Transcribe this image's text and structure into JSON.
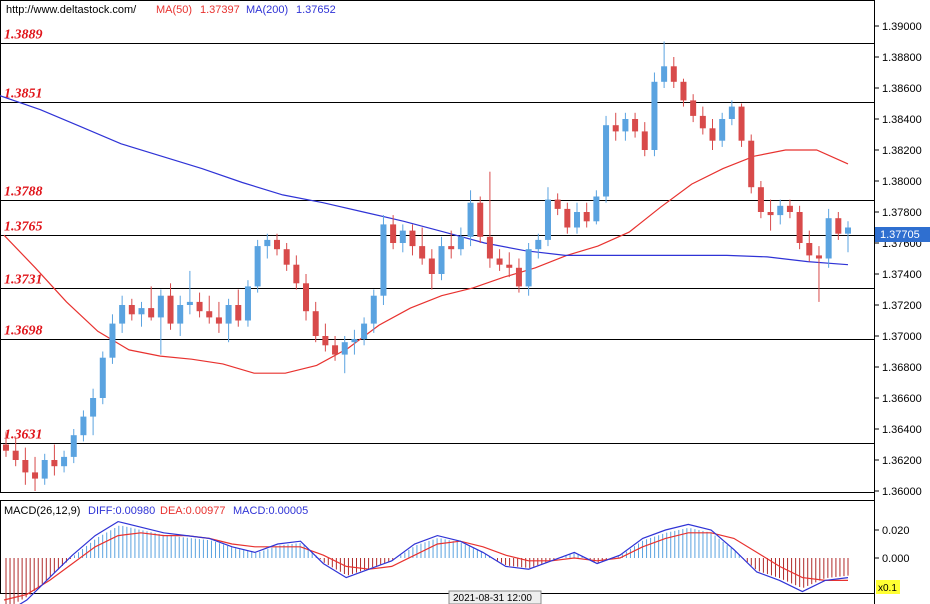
{
  "header": {
    "url": "http://www.deltastock.com/",
    "ma50_label": "MA(50)",
    "ma50_value": "1.37397",
    "ma200_label": "MA(200)",
    "ma200_value": "1.37652"
  },
  "macd_header": {
    "label": "MACD(26,12,9)",
    "diff": "DIFF:0.00980",
    "dea": "DEA:0.00977",
    "macd": "MACD:0.00005"
  },
  "current_price": "1.37705",
  "time_marker": "2021-08-31 12:00",
  "macd_scale_tag": "x0.1",
  "colors": {
    "up_candle": "#5aa3e0",
    "down_candle": "#d84a4a",
    "ma50": "#e8322f",
    "ma200": "#2f33d6",
    "level_label": "#e0141a",
    "macd_hist_pos": "#5aa3e0",
    "macd_hist_neg": "#b02a2a"
  },
  "chart_data": [
    {
      "type": "candlestick",
      "title": "",
      "ylim": [
        1.3596,
        1.3908
      ],
      "y_ticks": [
        "1.39000",
        "1.38800",
        "1.38600",
        "1.38400",
        "1.38200",
        "1.38000",
        "1.37800",
        "1.37600",
        "1.37400",
        "1.37200",
        "1.37000",
        "1.36800",
        "1.36600",
        "1.36400",
        "1.36200",
        "1.36000"
      ],
      "levels": [
        "1.3889",
        "1.3851",
        "1.3788",
        "1.3765",
        "1.3731",
        "1.3698",
        "1.3631"
      ],
      "series": [
        {
          "name": "MA(50)",
          "values": [
            1.3765,
            1.3744,
            1.3722,
            1.3703,
            1.3691,
            1.3687,
            1.3685,
            1.3682,
            1.3676,
            1.3676,
            1.3681,
            1.3692,
            1.3707,
            1.3718,
            1.3726,
            1.3731,
            1.3738,
            1.3744,
            1.3752,
            1.3758,
            1.3767,
            1.3783,
            1.3798,
            1.3808,
            1.3816,
            1.382,
            1.382,
            1.3811
          ]
        },
        {
          "name": "MA(200)",
          "values": [
            1.3855,
            1.3846,
            1.3835,
            1.3824,
            1.3816,
            1.3808,
            1.3799,
            1.3791,
            1.3786,
            1.378,
            1.3774,
            1.3767,
            1.376,
            1.3755,
            1.3752,
            1.3752,
            1.3752,
            1.3752,
            1.3752,
            1.3751,
            1.3748,
            1.3746
          ]
        }
      ],
      "candles_ohlc": [
        [
          1.363,
          1.3638,
          1.3622,
          1.3626
        ],
        [
          1.3626,
          1.3634,
          1.3616,
          1.362
        ],
        [
          1.362,
          1.3628,
          1.3604,
          1.3612
        ],
        [
          1.3612,
          1.3622,
          1.36,
          1.3608
        ],
        [
          1.3608,
          1.3624,
          1.3604,
          1.362
        ],
        [
          1.362,
          1.363,
          1.361,
          1.3616
        ],
        [
          1.3616,
          1.3626,
          1.3612,
          1.3622
        ],
        [
          1.3622,
          1.364,
          1.3618,
          1.3636
        ],
        [
          1.3636,
          1.3652,
          1.3632,
          1.3648
        ],
        [
          1.3648,
          1.3666,
          1.3636,
          1.366
        ],
        [
          1.366,
          1.369,
          1.3656,
          1.3686
        ],
        [
          1.3686,
          1.3714,
          1.3682,
          1.3708
        ],
        [
          1.3708,
          1.3726,
          1.3702,
          1.372
        ],
        [
          1.372,
          1.3724,
          1.371,
          1.3714
        ],
        [
          1.3714,
          1.3722,
          1.3706,
          1.3718
        ],
        [
          1.3718,
          1.3732,
          1.371,
          1.3712
        ],
        [
          1.3712,
          1.373,
          1.3688,
          1.3726
        ],
        [
          1.3726,
          1.3734,
          1.3704,
          1.3708
        ],
        [
          1.3708,
          1.3726,
          1.37,
          1.372
        ],
        [
          1.372,
          1.3742,
          1.3714,
          1.3722
        ],
        [
          1.3722,
          1.3728,
          1.3712,
          1.3716
        ],
        [
          1.3716,
          1.3726,
          1.3708,
          1.3712
        ],
        [
          1.3712,
          1.3722,
          1.3702,
          1.3708
        ],
        [
          1.3708,
          1.3724,
          1.3696,
          1.372
        ],
        [
          1.372,
          1.373,
          1.3706,
          1.371
        ],
        [
          1.371,
          1.3736,
          1.3706,
          1.3732
        ],
        [
          1.3732,
          1.3762,
          1.3728,
          1.3758
        ],
        [
          1.3758,
          1.3766,
          1.375,
          1.3762
        ],
        [
          1.3762,
          1.3766,
          1.3752,
          1.3756
        ],
        [
          1.3756,
          1.376,
          1.3742,
          1.3746
        ],
        [
          1.3746,
          1.3752,
          1.373,
          1.3734
        ],
        [
          1.3734,
          1.374,
          1.371,
          1.3716
        ],
        [
          1.3716,
          1.3722,
          1.3696,
          1.37
        ],
        [
          1.37,
          1.3708,
          1.369,
          1.3694
        ],
        [
          1.3694,
          1.37,
          1.3684,
          1.3688
        ],
        [
          1.3688,
          1.37,
          1.3676,
          1.3696
        ],
        [
          1.3696,
          1.3704,
          1.3688,
          1.3698
        ],
        [
          1.3698,
          1.3712,
          1.3694,
          1.3708
        ],
        [
          1.3708,
          1.373,
          1.3702,
          1.3726
        ],
        [
          1.3726,
          1.3778,
          1.372,
          1.3772
        ],
        [
          1.3772,
          1.3778,
          1.3756,
          1.376
        ],
        [
          1.376,
          1.3772,
          1.3754,
          1.3768
        ],
        [
          1.3768,
          1.3772,
          1.3752,
          1.3758
        ],
        [
          1.3758,
          1.377,
          1.3746,
          1.375
        ],
        [
          1.375,
          1.3756,
          1.373,
          1.374
        ],
        [
          1.374,
          1.3764,
          1.3736,
          1.3758
        ],
        [
          1.3758,
          1.3768,
          1.375,
          1.3756
        ],
        [
          1.3756,
          1.377,
          1.3752,
          1.3764
        ],
        [
          1.3764,
          1.3794,
          1.3758,
          1.3786
        ],
        [
          1.3786,
          1.379,
          1.376,
          1.3764
        ],
        [
          1.3764,
          1.3806,
          1.3744,
          1.375
        ],
        [
          1.375,
          1.3756,
          1.3742,
          1.3746
        ],
        [
          1.3746,
          1.3754,
          1.3738,
          1.3744
        ],
        [
          1.3744,
          1.375,
          1.3728,
          1.3732
        ],
        [
          1.3732,
          1.376,
          1.3726,
          1.3756
        ],
        [
          1.3756,
          1.3766,
          1.375,
          1.3762
        ],
        [
          1.3762,
          1.3796,
          1.3758,
          1.3788
        ],
        [
          1.3788,
          1.3792,
          1.3778,
          1.3782
        ],
        [
          1.3782,
          1.3786,
          1.3766,
          1.377
        ],
        [
          1.377,
          1.3786,
          1.3766,
          1.378
        ],
        [
          1.378,
          1.3786,
          1.377,
          1.3774
        ],
        [
          1.3774,
          1.3794,
          1.3772,
          1.379
        ],
        [
          1.379,
          1.3842,
          1.3786,
          1.3836
        ],
        [
          1.3836,
          1.3844,
          1.3826,
          1.3832
        ],
        [
          1.3832,
          1.3844,
          1.3826,
          1.384
        ],
        [
          1.384,
          1.3844,
          1.3828,
          1.3832
        ],
        [
          1.3832,
          1.3838,
          1.3816,
          1.382
        ],
        [
          1.382,
          1.387,
          1.3816,
          1.3864
        ],
        [
          1.3864,
          1.389,
          1.386,
          1.3874
        ],
        [
          1.3874,
          1.388,
          1.386,
          1.3864
        ],
        [
          1.3864,
          1.3866,
          1.3848,
          1.3852
        ],
        [
          1.3852,
          1.3856,
          1.3838,
          1.3842
        ],
        [
          1.3842,
          1.3848,
          1.383,
          1.3834
        ],
        [
          1.3834,
          1.384,
          1.382,
          1.3826
        ],
        [
          1.3826,
          1.3844,
          1.3822,
          1.384
        ],
        [
          1.384,
          1.3852,
          1.3836,
          1.3848
        ],
        [
          1.3848,
          1.385,
          1.3822,
          1.3826
        ],
        [
          1.3826,
          1.383,
          1.3792,
          1.3796
        ],
        [
          1.3796,
          1.38,
          1.3776,
          1.378
        ],
        [
          1.378,
          1.3788,
          1.3768,
          1.3778
        ],
        [
          1.3778,
          1.3788,
          1.3772,
          1.3784
        ],
        [
          1.3784,
          1.3788,
          1.3776,
          1.378
        ],
        [
          1.378,
          1.3784,
          1.3756,
          1.376
        ],
        [
          1.376,
          1.3768,
          1.3748,
          1.3752
        ],
        [
          1.3752,
          1.3758,
          1.3722,
          1.375
        ],
        [
          1.375,
          1.3782,
          1.3744,
          1.3776
        ],
        [
          1.3776,
          1.378,
          1.3762,
          1.3766
        ],
        [
          1.3766,
          1.3774,
          1.3754,
          1.377
        ]
      ]
    },
    {
      "type": "line",
      "title": "MACD(26,12,9)",
      "y_ticks": [
        "0.020",
        "0.000"
      ],
      "series": [
        {
          "name": "DIFF",
          "values": [
            -0.04,
            -0.03,
            -0.014,
            0.002,
            0.016,
            0.026,
            0.022,
            0.018,
            0.016,
            0.014,
            0.008,
            0.004,
            0.01,
            0.012,
            -0.004,
            -0.014,
            -0.008,
            -0.002,
            0.01,
            0.016,
            0.012,
            0.004,
            -0.006,
            -0.008,
            -0.002,
            0.004,
            -0.004,
            0.002,
            0.014,
            0.02,
            0.024,
            0.02,
            0.006,
            -0.01,
            -0.016,
            -0.024,
            -0.016,
            -0.014
          ]
        },
        {
          "name": "DEA",
          "values": [
            -0.03,
            -0.026,
            -0.016,
            -0.004,
            0.008,
            0.016,
            0.018,
            0.016,
            0.016,
            0.014,
            0.01,
            0.008,
            0.008,
            0.008,
            0.002,
            -0.006,
            -0.008,
            -0.006,
            0.002,
            0.01,
            0.012,
            0.008,
            0.002,
            -0.002,
            -0.002,
            0.0,
            -0.002,
            0.0,
            0.008,
            0.014,
            0.018,
            0.018,
            0.014,
            0.004,
            -0.006,
            -0.014,
            -0.016,
            -0.016
          ]
        }
      ]
    }
  ]
}
